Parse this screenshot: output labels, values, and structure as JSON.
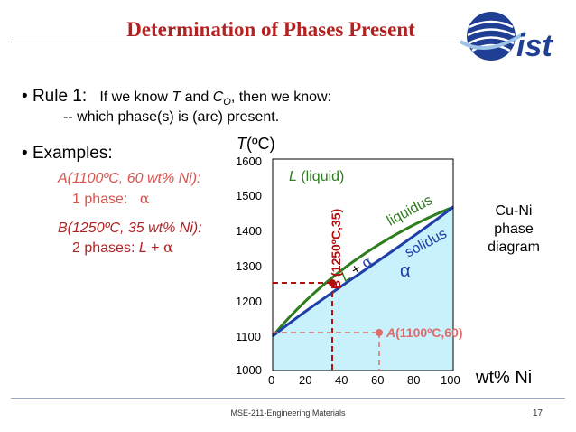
{
  "slide": {
    "title": "Determination of Phases Present",
    "bullet1_rule": "Rule 1:",
    "bullet1_text_a": "If we know ",
    "bullet1_T": "T",
    "bullet1_and": " and ",
    "bullet1_C": "C",
    "bullet1_C_sub": "O",
    "bullet1_text_b": ", then we know:",
    "bullet1_sub": "-- which phase(s) is (are) present.",
    "examples_label": "Examples:",
    "example_a_line1": "A(1100ºC, 60 wt% Ni):",
    "example_a_line2_prefix": "1 phase:",
    "example_a_line2_phase": "α",
    "example_b_line1": "B(1250ºC, 35 wt% Ni):",
    "example_b_line2_prefix": "2 phases: ",
    "example_b_line2_L": "L",
    "example_b_line2_plus": " + ",
    "example_b_line2_alpha": "α",
    "cuni_line1": "Cu-Ni",
    "cuni_line2": "phase",
    "cuni_line3": "diagram",
    "x_axis_label": "wt% Ni",
    "footer": "MSE-211-Engineering Materials",
    "page_number": "17",
    "bullet_symbol": "•"
  },
  "diagram": {
    "y_axis_label": "T(ºC)",
    "y_ticks": [
      "1600",
      "1500",
      "1400",
      "1300",
      "1200",
      "1100",
      "1000"
    ],
    "x_ticks": [
      "0",
      "20",
      "40",
      "60",
      "80",
      "100"
    ],
    "region_liquid": "L (liquid)",
    "region_two_phase": "L + α",
    "region_alpha": "α",
    "curve_liquidus": "liquidus",
    "curve_solidus": "solidus",
    "point_a_label": "A(1100ºC,60)",
    "point_b_label": "B (1250ºC,35)",
    "colors": {
      "liquid": "#ffffff",
      "two_phase": "#ffffff",
      "alpha": "#c9f1fb",
      "liquidus": "#2e7d1e",
      "solidus": "#1f3fa8",
      "point_a": "#e06b6b",
      "point_b": "#b01010",
      "label_green": "#2e7d1e",
      "label_blue": "#1f3fa8"
    }
  },
  "logo": {
    "text": "ist"
  }
}
